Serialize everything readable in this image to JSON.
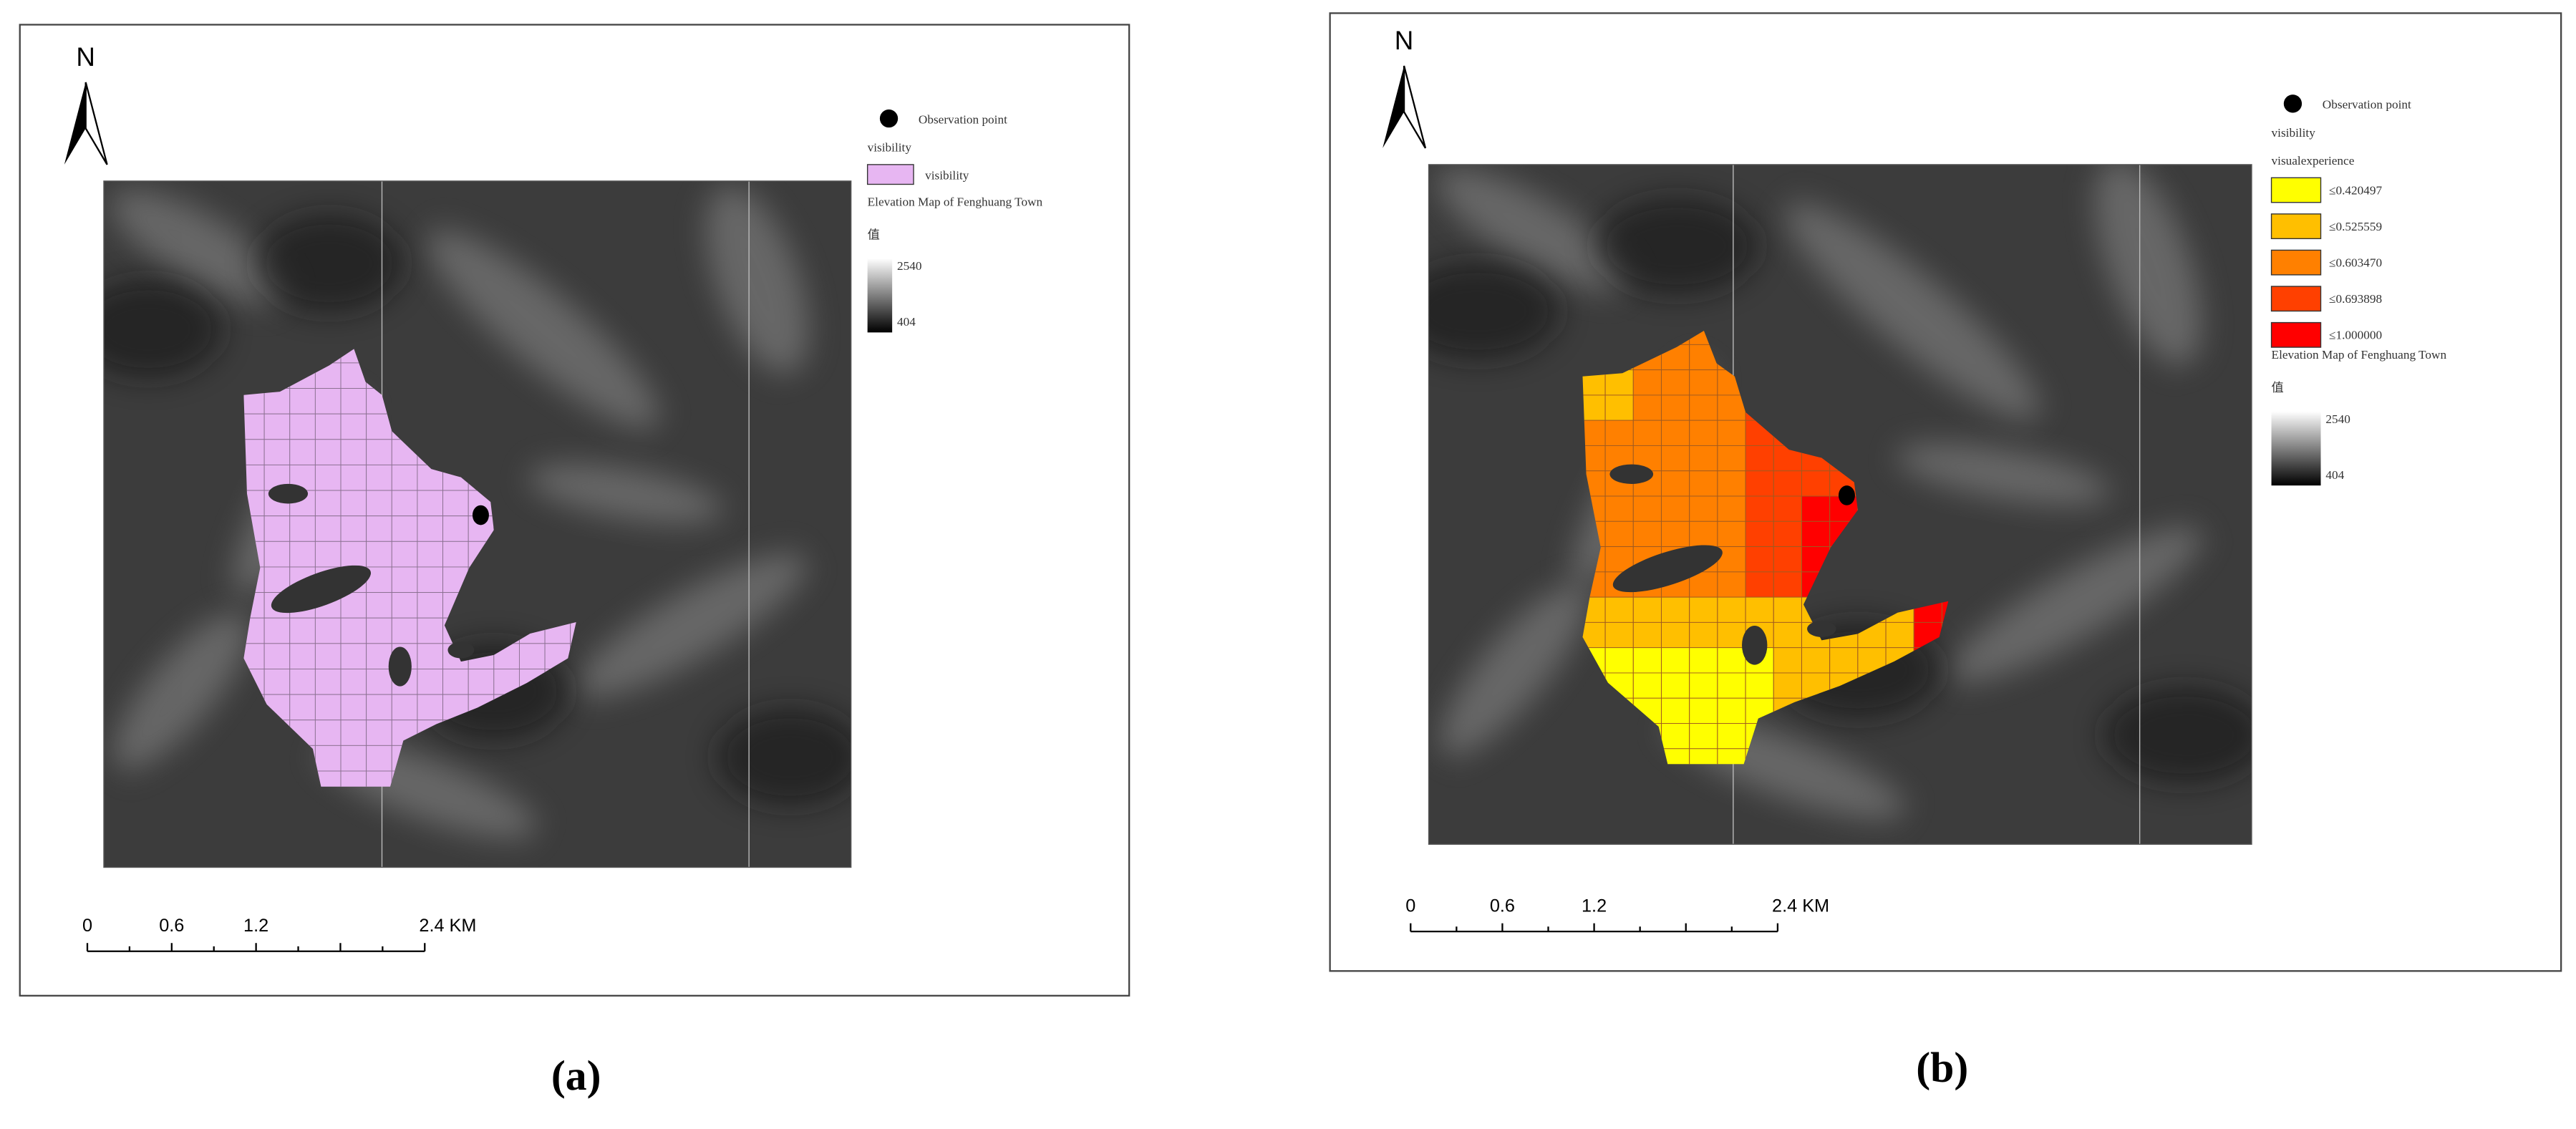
{
  "panels": [
    {
      "label": "(a)",
      "north": "N",
      "legend": {
        "observation": "Observation point",
        "layer": "visibility",
        "items": [
          "visibility"
        ],
        "elevation_title": "Elevation Map of Fenghuang Town",
        "elevation_field": "值",
        "elevation_max": "2540",
        "elevation_min": "404"
      },
      "scale": [
        "0",
        "0.6",
        "1.2",
        "2.4 KM"
      ]
    },
    {
      "label": "(b)",
      "north": "N",
      "legend": {
        "observation": "Observation point",
        "layer": "visibility",
        "sublayer": "visualexperience",
        "items": [
          "≤0.420497",
          "≤0.525559",
          "≤0.603470",
          "≤0.693898",
          "≤1.000000"
        ],
        "elevation_title": "Elevation Map of Fenghuang Town",
        "elevation_field": "值",
        "elevation_max": "2540",
        "elevation_min": "404"
      },
      "scale": [
        "0",
        "0.6",
        "1.2",
        "2.4 KM"
      ]
    }
  ]
}
